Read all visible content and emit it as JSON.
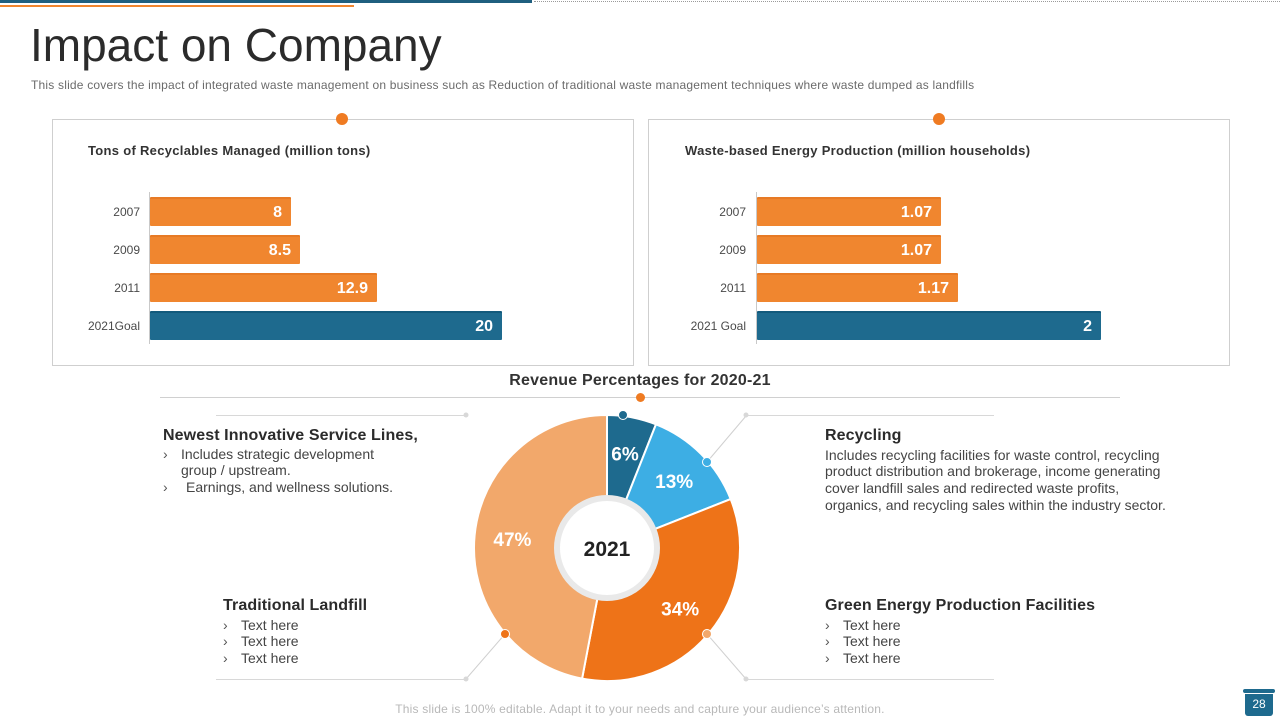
{
  "slide": {
    "title": "Impact on Company",
    "subtitle": "This slide covers the impact of integrated waste management on business such as Reduction of traditional waste management techniques where waste dumped as landfills",
    "footer": "This slide is 100% editable. Adapt it to your needs and capture your audience’s attention.",
    "page_number": "28"
  },
  "colors": {
    "orange": "#f0862f",
    "blue": "#1e6a8e",
    "light_blue": "#3daee4",
    "dark_orange": "#ee7318",
    "peach": "#f2a86b"
  },
  "chart_data": [
    {
      "type": "bar",
      "orientation": "horizontal",
      "title": "Tons of Recyclables Managed (million tons)",
      "categories": [
        "2007",
        "2009",
        "2011",
        "2021Goal"
      ],
      "values": [
        8,
        8.5,
        12.9,
        20
      ],
      "value_labels": [
        "8",
        "8.5",
        "12.9",
        "20"
      ],
      "xlim": [
        0,
        20
      ],
      "highlight": "2021Goal"
    },
    {
      "type": "bar",
      "orientation": "horizontal",
      "title": "Waste-based Energy Production (million households)",
      "categories": [
        "2007",
        "2009",
        "2011",
        "2021 Goal"
      ],
      "values": [
        1.07,
        1.07,
        1.17,
        2
      ],
      "value_labels": [
        "1.07",
        "1.07",
        "1.17",
        "2"
      ],
      "xlim": [
        0,
        2
      ],
      "highlight": "2021 Goal"
    },
    {
      "type": "pie",
      "donut": true,
      "title": "Revenue Percentages for 2020-21",
      "center_label": "2021",
      "labels": [
        "Newest Innovative Service Lines",
        "Recycling",
        "Green Energy Production Facilities",
        "Traditional Landfill"
      ],
      "values": [
        6,
        13,
        34,
        47
      ],
      "value_labels": [
        "6%",
        "13%",
        "34%",
        "47%"
      ],
      "colors": [
        "#1e6a8e",
        "#3daee4",
        "#ee7318",
        "#f2a86b"
      ]
    }
  ],
  "blocks": {
    "newest": {
      "title": "Newest Innovative Service Lines,",
      "bullets": [
        "Includes strategic development",
        "group / upstream.",
        "Earnings, and wellness solutions."
      ]
    },
    "recycling": {
      "title": "Recycling",
      "text": [
        "Includes recycling facilities for waste control, recycling",
        "product distribution and brokerage, income generating",
        "cover landfill sales and redirected waste profits,",
        "organics, and recycling sales within the industry sector."
      ]
    },
    "landfill": {
      "title": "Traditional Landfill",
      "bullets": [
        "Text here",
        "Text here",
        "Text here"
      ]
    },
    "green": {
      "title": "Green Energy Production Facilities",
      "bullets": [
        "Text here",
        "Text here",
        "Text here"
      ]
    },
    "bullet_glyph": "›"
  }
}
